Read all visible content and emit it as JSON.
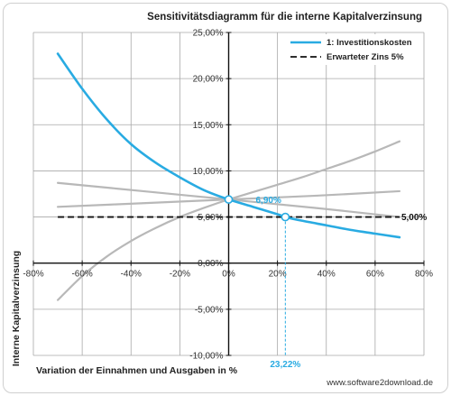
{
  "chart_data": {
    "type": "line",
    "title": "Sensitivitätsdiagramm für die interne Kapitalverzinsung",
    "xlabel": "Variation der Einnahmen und Ausgaben in %",
    "ylabel": "Interne Kapitalverzinsung",
    "xlim": [
      -80,
      80
    ],
    "ylim": [
      -10,
      25
    ],
    "x_ticks": [
      "-80%",
      "-60%",
      "-40%",
      "-20%",
      "0%",
      "20%",
      "40%",
      "60%",
      "80%"
    ],
    "y_ticks": [
      "-10,00%",
      "-5,00%",
      "0,00%",
      "5,00%",
      "10,00%",
      "15,00%",
      "20,00%",
      "25,00%"
    ],
    "grid": true,
    "legend_position": "top-right",
    "colors": {
      "highlight": "#29abe2",
      "reference": "#111111",
      "other": "#b8b8b8"
    },
    "series": [
      {
        "name": "1: Investitionskosten",
        "role": "highlight",
        "x": [
          -70,
          -60,
          -50,
          -40,
          -30,
          -20,
          -10,
          0,
          10,
          20,
          23.22,
          30,
          40,
          50,
          60,
          70
        ],
        "y": [
          22.7,
          18.9,
          15.6,
          12.9,
          10.9,
          9.3,
          7.9,
          6.9,
          6.1,
          5.3,
          5.0,
          4.6,
          4.1,
          3.6,
          3.2,
          2.8
        ]
      },
      {
        "name": "Erwarteter Zins 5%",
        "role": "reference",
        "dashed": true,
        "x": [
          -70,
          70
        ],
        "y": [
          5.0,
          5.0
        ]
      },
      {
        "role": "other",
        "x": [
          -70,
          -60,
          -50,
          -40,
          -30,
          -20,
          -10,
          0,
          10,
          20,
          30,
          40,
          50,
          60,
          70
        ],
        "y": [
          -4.0,
          -1.4,
          0.7,
          2.4,
          3.8,
          5.0,
          6.0,
          6.9,
          7.7,
          8.5,
          9.3,
          10.2,
          11.1,
          12.1,
          13.2
        ]
      },
      {
        "role": "other",
        "x": [
          -70,
          -35,
          0,
          35,
          70
        ],
        "y": [
          6.1,
          6.5,
          6.9,
          7.3,
          7.8
        ]
      },
      {
        "role": "other",
        "x": [
          -70,
          -35,
          0,
          35,
          70
        ],
        "y": [
          8.7,
          7.8,
          6.9,
          6.0,
          5.0
        ]
      }
    ],
    "annotations": {
      "base_point": {
        "x": 0,
        "y": 6.9,
        "label": "6,90%"
      },
      "break_even": {
        "x": 23.22,
        "y": 5.0,
        "label": "23,22%"
      },
      "reference_label": "5,00%"
    },
    "footer": "www.software2download.de"
  }
}
